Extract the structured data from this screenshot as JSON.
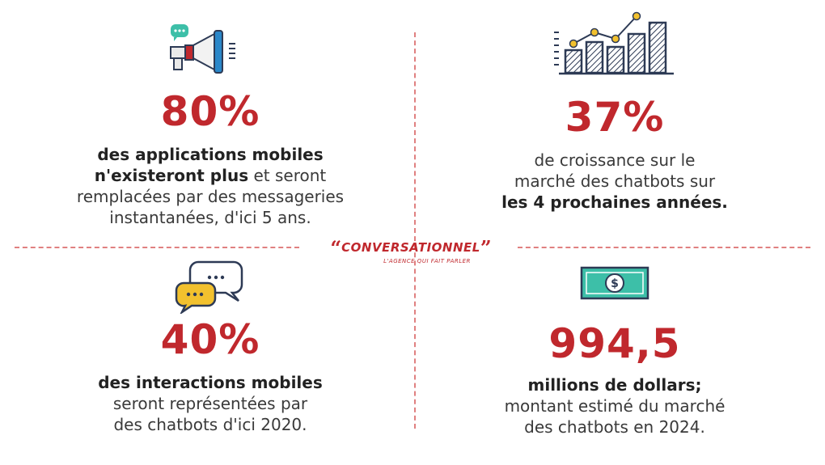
{
  "logo": {
    "open_quote": "“",
    "brand": "CONVERSATIONNEL",
    "close_quote": "”",
    "tagline": "L'AGENCE QUI FAIT PARLER"
  },
  "stats": [
    {
      "value": "80%",
      "icon": "megaphone-icon",
      "lines": [
        [
          {
            "text": "des applications mobiles",
            "bold": true
          }
        ],
        [
          {
            "text": "n'existeront plus",
            "bold": true
          },
          {
            "text": " et seront",
            "bold": false
          }
        ],
        [
          {
            "text": "remplacées par des messageries",
            "bold": false
          }
        ],
        [
          {
            "text": "instantanées, d'ici 5 ans.",
            "bold": false
          }
        ]
      ]
    },
    {
      "value": "37%",
      "icon": "bar-chart-growth-icon",
      "lines": [
        [
          {
            "text": "de croissance sur le",
            "bold": false
          }
        ],
        [
          {
            "text": "marché des chatbots sur",
            "bold": false
          }
        ],
        [
          {
            "text": "les 4 prochaines années.",
            "bold": true
          }
        ]
      ]
    },
    {
      "value": "40%",
      "icon": "chat-bubbles-icon",
      "lines": [
        [
          {
            "text": "des interactions mobiles",
            "bold": true
          }
        ],
        [
          {
            "text": "seront représentées par",
            "bold": false
          }
        ],
        [
          {
            "text": "des chatbots d'ici 2020.",
            "bold": false
          }
        ]
      ]
    },
    {
      "value": "994,5",
      "icon": "dollar-bill-icon",
      "lines": [
        [
          {
            "text": "millions de dollars;",
            "bold": true
          }
        ],
        [
          {
            "text": "montant estimé du marché",
            "bold": false
          }
        ],
        [
          {
            "text": "des chatbots en 2024.",
            "bold": false
          }
        ]
      ]
    }
  ]
}
